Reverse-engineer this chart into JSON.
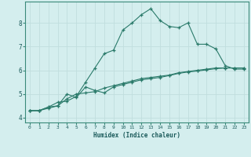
{
  "xlabel": "Humidex (Indice chaleur)",
  "background_color": "#d4eeee",
  "grid_color": "#c0dede",
  "line_color": "#2a7a6a",
  "xlim": [
    -0.5,
    23.5
  ],
  "ylim": [
    3.8,
    8.9
  ],
  "yticks": [
    4,
    5,
    6,
    7,
    8
  ],
  "xticks": [
    0,
    1,
    2,
    3,
    4,
    5,
    6,
    7,
    8,
    9,
    10,
    11,
    12,
    13,
    14,
    15,
    16,
    17,
    18,
    19,
    20,
    21,
    22,
    23
  ],
  "series1_x": [
    0,
    1,
    2,
    3,
    4,
    5,
    6,
    7,
    8,
    9,
    10,
    11,
    12,
    13,
    14,
    15,
    16,
    17,
    18,
    19,
    20,
    21,
    22,
    23
  ],
  "series1_y": [
    4.3,
    4.3,
    4.45,
    4.65,
    4.7,
    4.9,
    5.5,
    6.1,
    6.7,
    6.85,
    7.7,
    8.0,
    8.35,
    8.6,
    8.1,
    7.85,
    7.8,
    8.0,
    7.1,
    7.1,
    6.9,
    6.2,
    6.05,
    6.05
  ],
  "series2_x": [
    0,
    1,
    2,
    3,
    4,
    5,
    6,
    7,
    8,
    9,
    10,
    11,
    12,
    13,
    14,
    15,
    16,
    17,
    18,
    19,
    20,
    21,
    22,
    23
  ],
  "series2_y": [
    4.3,
    4.3,
    4.45,
    4.5,
    4.8,
    5.0,
    5.05,
    5.1,
    5.25,
    5.35,
    5.45,
    5.55,
    5.65,
    5.7,
    5.75,
    5.8,
    5.9,
    5.95,
    6.0,
    6.05,
    6.1,
    6.1,
    6.1,
    6.1
  ],
  "series3_x": [
    0,
    1,
    2,
    3,
    4,
    5,
    6,
    7,
    8,
    9,
    10,
    11,
    12,
    13,
    14,
    15,
    16,
    17,
    18,
    19,
    20,
    21,
    22,
    23
  ],
  "series3_y": [
    4.3,
    4.3,
    4.4,
    4.5,
    5.0,
    4.85,
    5.3,
    5.15,
    5.05,
    5.3,
    5.4,
    5.5,
    5.6,
    5.65,
    5.7,
    5.78,
    5.87,
    5.93,
    5.97,
    6.02,
    6.07,
    6.1,
    6.1,
    6.1
  ]
}
